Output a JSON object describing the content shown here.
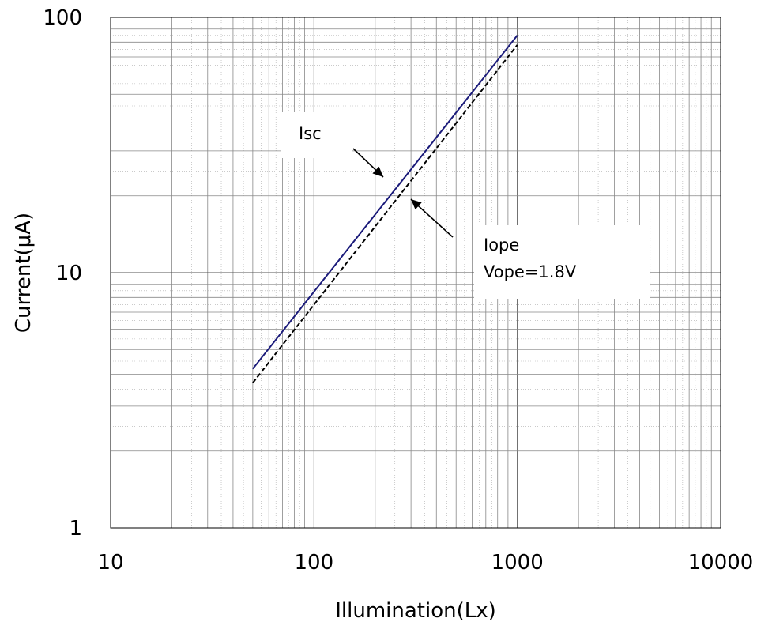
{
  "chart_data": {
    "type": "line",
    "title": "",
    "xlabel": "Illumination(Lx)",
    "ylabel": "Current(μA)",
    "xscale": "log",
    "yscale": "log",
    "xlim": [
      10,
      10000
    ],
    "ylim": [
      1,
      100
    ],
    "x_tick_labels": [
      "10",
      "100",
      "1000",
      "10000"
    ],
    "y_tick_labels": [
      "1",
      "10",
      "100"
    ],
    "grid": true,
    "legend": "none",
    "series": [
      {
        "x": [
          50,
          1000
        ],
        "y": [
          4.2,
          85
        ],
        "color": "#1a1a7a",
        "style": "solid"
      },
      {
        "x": [
          50,
          1000
        ],
        "y": [
          3.7,
          78
        ],
        "color": "#000000",
        "style": "dashed"
      }
    ],
    "annotations": [
      {
        "text": "Isc",
        "target_series": 0
      },
      {
        "text": "Iope",
        "text2": "Vope=1.8V",
        "target_series": 1
      }
    ]
  }
}
